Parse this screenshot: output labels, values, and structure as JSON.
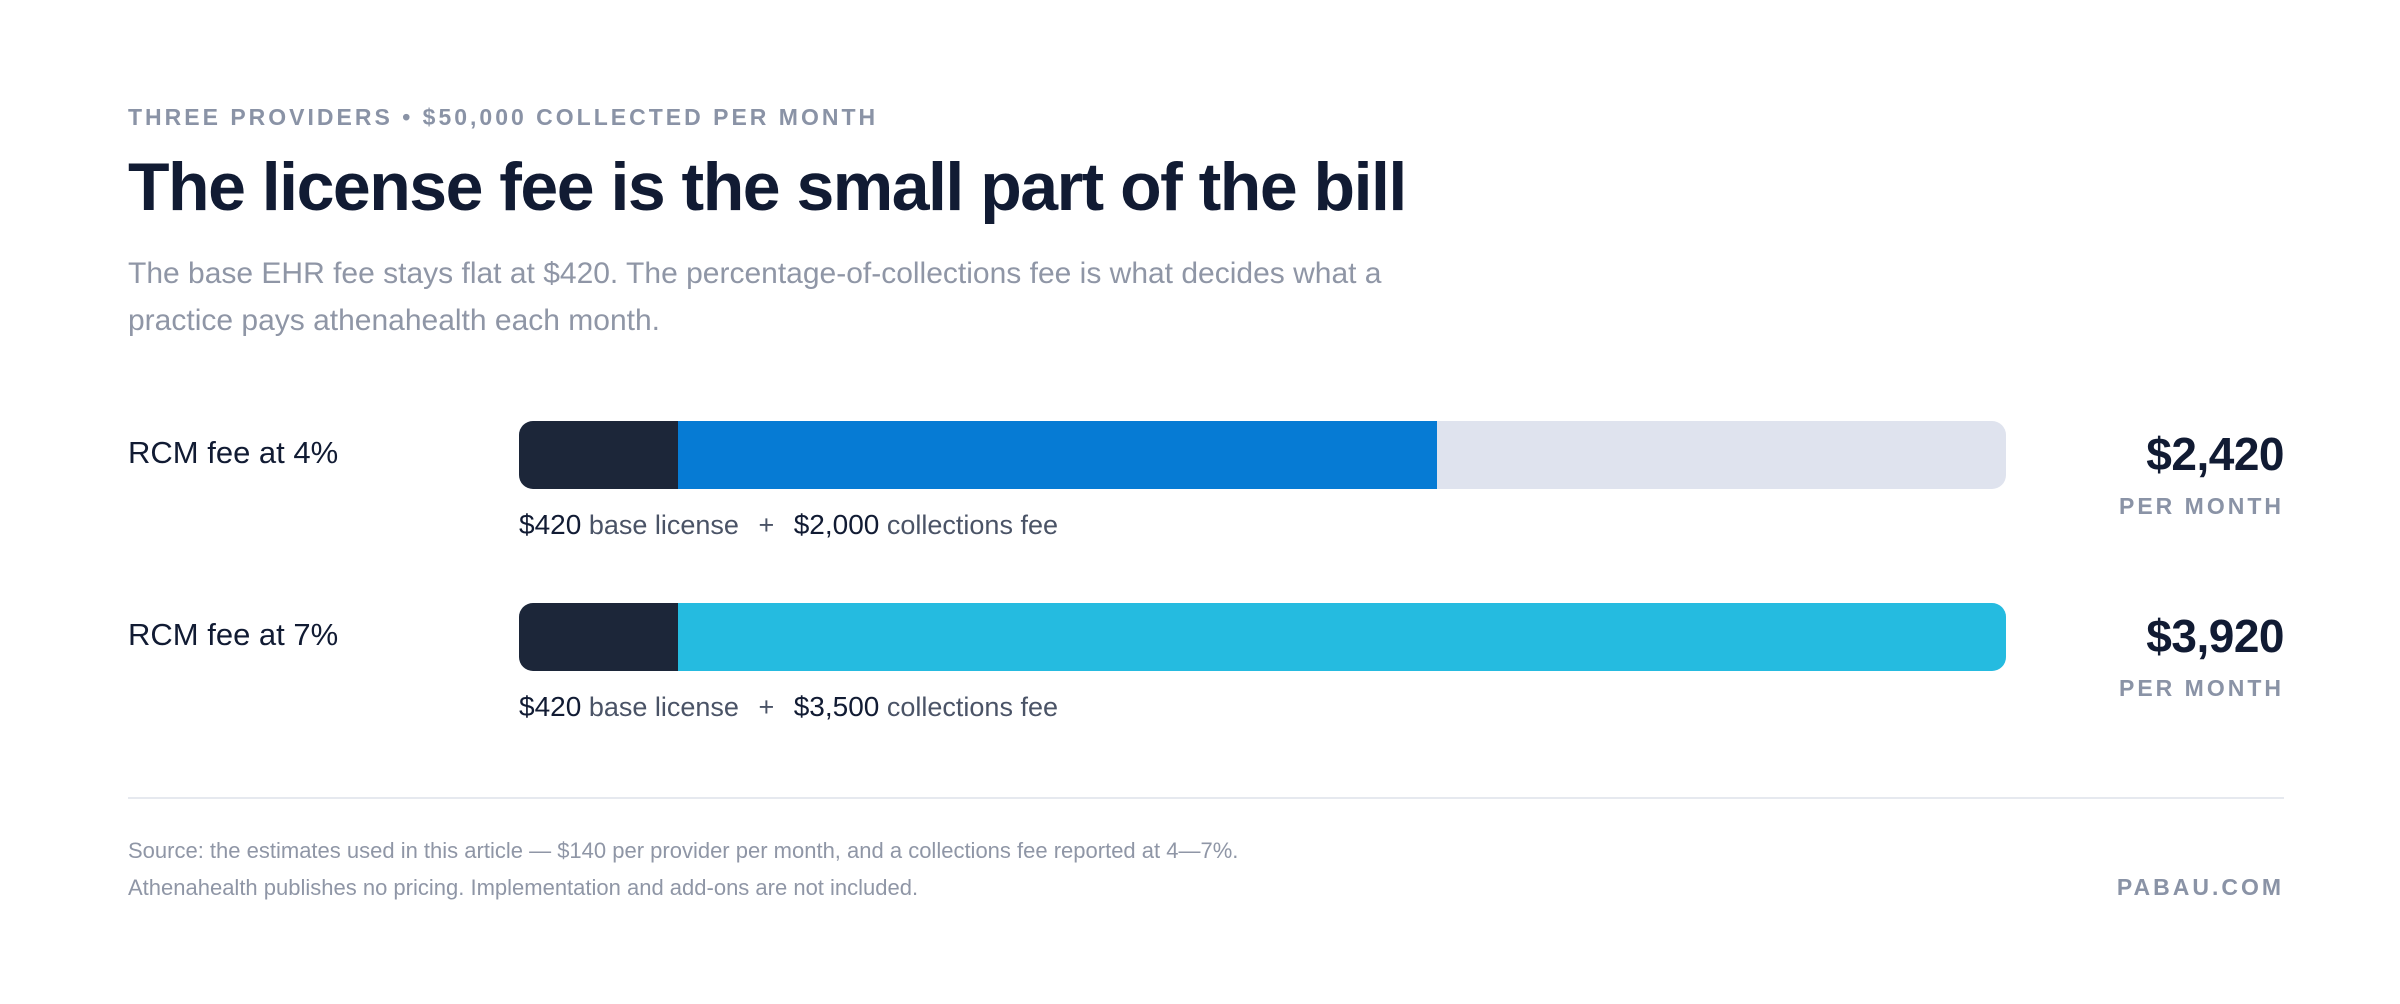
{
  "header": {
    "eyebrow": "THREE PROVIDERS • $50,000 COLLECTED PER MONTH",
    "title": "The license fee is the small part of the bill",
    "subtitle": "The base EHR fee stays flat at $420. The percentage-of-collections fee is what decides what a practice pays athenahealth each month."
  },
  "colors": {
    "base_segment": "#1c2639",
    "rcm_4_segment": "#067bd4",
    "rcm_7_segment": "#25bbe0",
    "track": "#dfe3ee"
  },
  "chart_data": {
    "type": "bar",
    "orientation": "horizontal",
    "stacked": true,
    "xlim": [
      0,
      3920
    ],
    "categories": [
      "RCM fee at 4%",
      "RCM fee at 7%"
    ],
    "series": [
      {
        "name": "base license",
        "values": [
          420,
          420
        ]
      },
      {
        "name": "collections fee",
        "values": [
          2000,
          3500
        ]
      }
    ],
    "totals": [
      2420,
      3920
    ]
  },
  "rows": [
    {
      "label": "RCM fee at 4%",
      "base_amount": "$420",
      "base_text": "base license",
      "plus": "+",
      "fee_amount": "$2,000",
      "fee_text": "collections fee",
      "total": "$2,420",
      "per": "PER MONTH"
    },
    {
      "label": "RCM fee at 7%",
      "base_amount": "$420",
      "base_text": "base license",
      "plus": "+",
      "fee_amount": "$3,500",
      "fee_text": "collections fee",
      "total": "$3,920",
      "per": "PER MONTH"
    }
  ],
  "footer": {
    "source": "Source: the estimates used in this article — $140 per provider per month, and a collections fee reported at 4—7%. Athenahealth publishes no pricing. Implementation and add-ons are not included.",
    "brand": "PABAU.COM"
  }
}
